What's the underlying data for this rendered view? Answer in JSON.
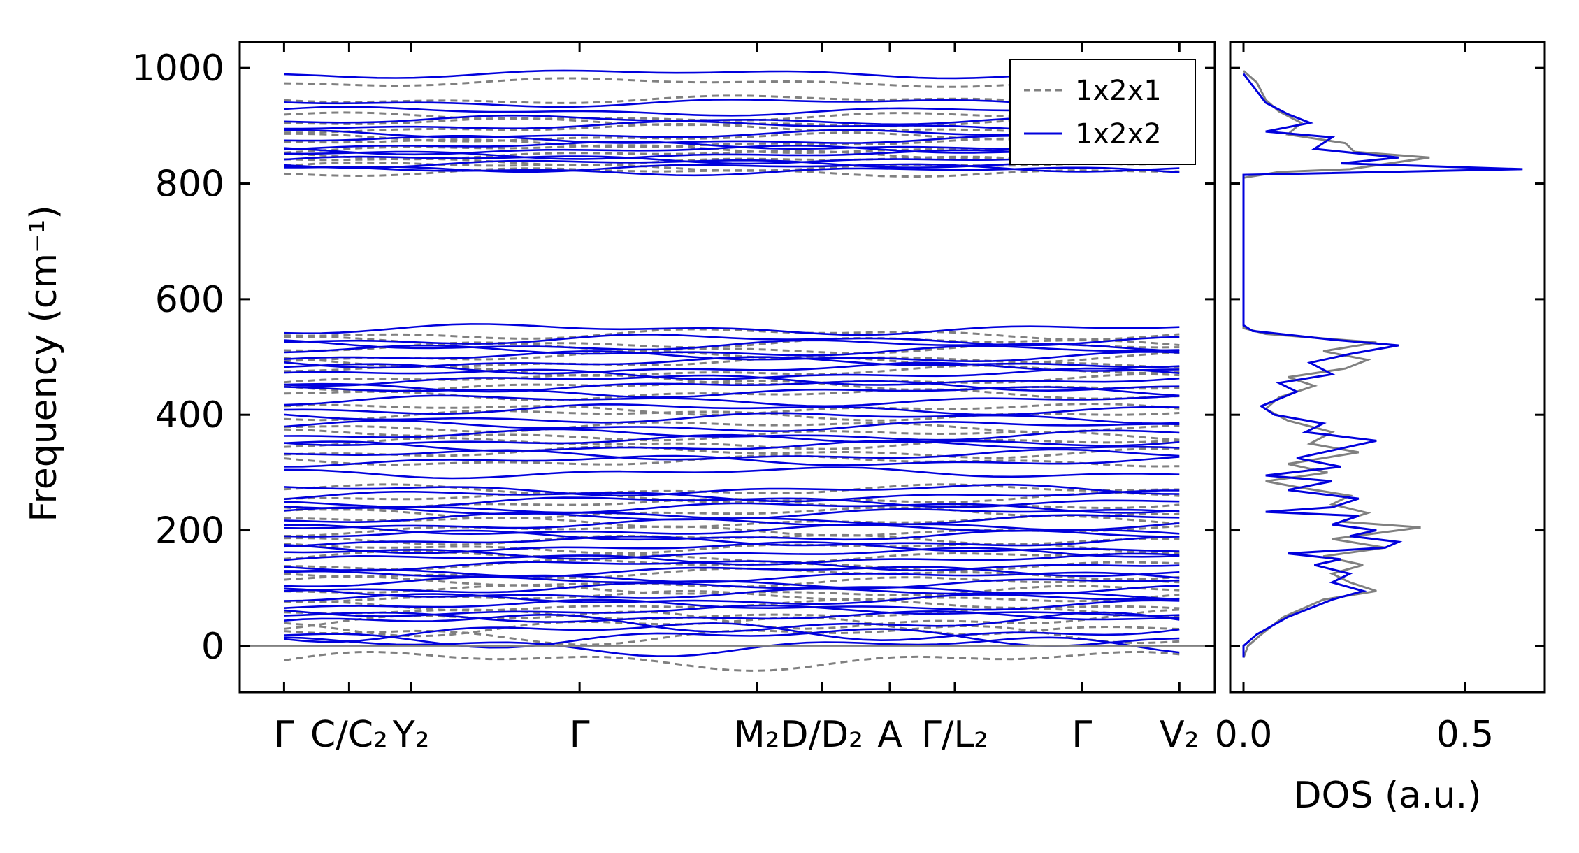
{
  "chart_data": [
    {
      "type": "line",
      "ylabel": "Frequency (cm⁻¹)",
      "xlabel": "",
      "ylim": [
        -80,
        1045
      ],
      "yticks": [
        "0",
        "200",
        "400",
        "600",
        "800",
        "1000"
      ],
      "ytick_values": [
        0,
        200,
        400,
        600,
        800,
        1000
      ],
      "kpath_labels": [
        "Γ",
        "C/C₂",
        "Y₂",
        "Γ",
        "M₂",
        "D/D₂",
        "A",
        "Γ/L₂",
        "Γ",
        "V₂"
      ],
      "kpath_positions": [
        0.0,
        0.22,
        0.43,
        1.0,
        1.6,
        1.82,
        2.05,
        2.27,
        2.7,
        3.03
      ],
      "xlim": [
        -0.15,
        3.15
      ],
      "zero_line": 0,
      "legend": {
        "placement": "top-right",
        "entries": [
          "1x2x1",
          "1x2x2"
        ]
      },
      "series": [
        {
          "name": "1x2x1",
          "color": "#808080",
          "style": "dashed",
          "representative_band_frequencies": [
            -25,
            20,
            35,
            45,
            55,
            70,
            85,
            95,
            110,
            125,
            140,
            155,
            170,
            185,
            200,
            215,
            230,
            245,
            255,
            270,
            320,
            335,
            350,
            365,
            380,
            400,
            410,
            435,
            450,
            460,
            475,
            490,
            500,
            515,
            525,
            540,
            820,
            830,
            840,
            850,
            860,
            870,
            880,
            895,
            905,
            915,
            945,
            975
          ]
        },
        {
          "name": "1x2x2",
          "color": "#0000dd",
          "style": "solid",
          "representative_band_frequencies": [
            0,
            15,
            25,
            40,
            50,
            60,
            70,
            80,
            90,
            100,
            110,
            120,
            130,
            140,
            150,
            160,
            170,
            180,
            190,
            200,
            210,
            220,
            230,
            240,
            250,
            260,
            270,
            300,
            320,
            330,
            345,
            355,
            365,
            380,
            395,
            410,
            425,
            440,
            450,
            460,
            470,
            480,
            490,
            500,
            510,
            520,
            530,
            548,
            822,
            828,
            835,
            842,
            850,
            858,
            865,
            875,
            885,
            900,
            910,
            925,
            940,
            990
          ]
        }
      ]
    },
    {
      "type": "line",
      "xlabel": "DOS (a.u.)",
      "xticks": [
        "0.0",
        "0.5"
      ],
      "xtick_values": [
        0.0,
        0.5
      ],
      "xlim": [
        -0.03,
        0.68
      ],
      "ylim": [
        -80,
        1045
      ],
      "series": [
        {
          "name": "1x2x1",
          "color": "#808080",
          "points": [
            [
              0.0,
              -20
            ],
            [
              0.01,
              0
            ],
            [
              0.04,
              20
            ],
            [
              0.09,
              50
            ],
            [
              0.18,
              80
            ],
            [
              0.3,
              95
            ],
            [
              0.24,
              110
            ],
            [
              0.2,
              125
            ],
            [
              0.27,
              140
            ],
            [
              0.18,
              155
            ],
            [
              0.32,
              170
            ],
            [
              0.2,
              185
            ],
            [
              0.4,
              205
            ],
            [
              0.22,
              215
            ],
            [
              0.28,
              230
            ],
            [
              0.2,
              245
            ],
            [
              0.24,
              260
            ],
            [
              0.12,
              275
            ],
            [
              0.05,
              285
            ],
            [
              0.19,
              300
            ],
            [
              0.1,
              315
            ],
            [
              0.26,
              335
            ],
            [
              0.15,
              350
            ],
            [
              0.2,
              370
            ],
            [
              0.1,
              390
            ],
            [
              0.05,
              410
            ],
            [
              0.08,
              430
            ],
            [
              0.16,
              450
            ],
            [
              0.1,
              465
            ],
            [
              0.23,
              480
            ],
            [
              0.28,
              495
            ],
            [
              0.18,
              510
            ],
            [
              0.3,
              525
            ],
            [
              0.05,
              540
            ],
            [
              0.0,
              550
            ],
            [
              0.0,
              810
            ],
            [
              0.08,
              820
            ],
            [
              0.24,
              825
            ],
            [
              0.42,
              845
            ],
            [
              0.25,
              855
            ],
            [
              0.23,
              870
            ],
            [
              0.1,
              885
            ],
            [
              0.13,
              905
            ],
            [
              0.08,
              925
            ],
            [
              0.05,
              945
            ],
            [
              0.03,
              975
            ],
            [
              0.0,
              995
            ]
          ]
        },
        {
          "name": "1x2x2",
          "color": "#0000dd",
          "points": [
            [
              0.0,
              -20
            ],
            [
              0.0,
              0
            ],
            [
              0.03,
              20
            ],
            [
              0.1,
              50
            ],
            [
              0.2,
              80
            ],
            [
              0.27,
              95
            ],
            [
              0.2,
              110
            ],
            [
              0.24,
              125
            ],
            [
              0.16,
              140
            ],
            [
              0.22,
              150
            ],
            [
              0.1,
              160
            ],
            [
              0.32,
              170
            ],
            [
              0.35,
              180
            ],
            [
              0.24,
              190
            ],
            [
              0.3,
              200
            ],
            [
              0.2,
              210
            ],
            [
              0.26,
              225
            ],
            [
              0.05,
              232
            ],
            [
              0.2,
              240
            ],
            [
              0.26,
              255
            ],
            [
              0.1,
              270
            ],
            [
              0.2,
              285
            ],
            [
              0.05,
              295
            ],
            [
              0.22,
              310
            ],
            [
              0.12,
              325
            ],
            [
              0.3,
              355
            ],
            [
              0.14,
              370
            ],
            [
              0.18,
              385
            ],
            [
              0.07,
              400
            ],
            [
              0.04,
              415
            ],
            [
              0.12,
              440
            ],
            [
              0.08,
              455
            ],
            [
              0.2,
              470
            ],
            [
              0.15,
              490
            ],
            [
              0.24,
              505
            ],
            [
              0.35,
              520
            ],
            [
              0.2,
              530
            ],
            [
              0.02,
              545
            ],
            [
              0.0,
              555
            ],
            [
              0.0,
              815
            ],
            [
              0.63,
              825
            ],
            [
              0.22,
              835
            ],
            [
              0.35,
              845
            ],
            [
              0.16,
              860
            ],
            [
              0.2,
              880
            ],
            [
              0.05,
              890
            ],
            [
              0.15,
              905
            ],
            [
              0.1,
              920
            ],
            [
              0.05,
              940
            ],
            [
              0.02,
              970
            ],
            [
              0.0,
              990
            ]
          ]
        }
      ]
    }
  ]
}
